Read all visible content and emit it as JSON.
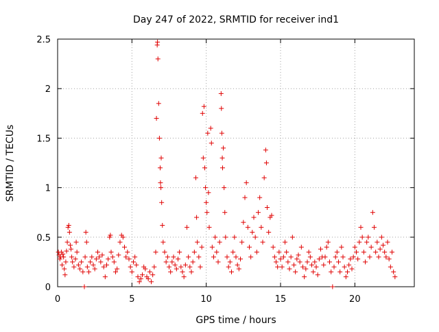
{
  "chart_data": {
    "type": "scatter",
    "title": "Day 247 of 2022, SRMTID for receiver ind1",
    "xlabel": "GPS time / hours",
    "ylabel": "SRMTID / TECUs",
    "xlim": [
      0,
      24
    ],
    "ylim": [
      0,
      2.5
    ],
    "xticks": [
      0,
      5,
      10,
      15,
      20
    ],
    "xtick_labels": [
      "0",
      "5",
      "10",
      "15",
      "20"
    ],
    "yticks": [
      0,
      0.5,
      1,
      1.5,
      2,
      2.5
    ],
    "ytick_labels": [
      "0",
      "0.5",
      "1",
      "1.5",
      "2",
      "2.5"
    ],
    "grid": true,
    "marker": "+",
    "color": "#e00000",
    "series": [
      {
        "name": "SRMTID",
        "points": [
          [
            0.05,
            0.35
          ],
          [
            0.1,
            0.32
          ],
          [
            0.15,
            0.28
          ],
          [
            0.2,
            0.3
          ],
          [
            0.25,
            0.35
          ],
          [
            0.3,
            0.22
          ],
          [
            0.35,
            0.33
          ],
          [
            0.4,
            0.3
          ],
          [
            0.45,
            0.18
          ],
          [
            0.5,
            0.12
          ],
          [
            0.55,
            0.25
          ],
          [
            0.6,
            0.36
          ],
          [
            0.65,
            0.45
          ],
          [
            0.7,
            0.6
          ],
          [
            0.75,
            0.62
          ],
          [
            0.8,
            0.55
          ],
          [
            0.85,
            0.42
          ],
          [
            0.9,
            0.38
          ],
          [
            0.95,
            0.3
          ],
          [
            1.0,
            0.25
          ],
          [
            1.1,
            0.2
          ],
          [
            1.2,
            0.28
          ],
          [
            1.25,
            0.45
          ],
          [
            1.3,
            0.35
          ],
          [
            1.4,
            0.22
          ],
          [
            1.5,
            0.18
          ],
          [
            1.6,
            0.25
          ],
          [
            1.7,
            0.15
          ],
          [
            1.8,
            0.0
          ],
          [
            1.85,
            0.3
          ],
          [
            1.9,
            0.55
          ],
          [
            1.95,
            0.45
          ],
          [
            2.0,
            0.2
          ],
          [
            2.1,
            0.15
          ],
          [
            2.2,
            0.25
          ],
          [
            2.3,
            0.3
          ],
          [
            2.4,
            0.22
          ],
          [
            2.5,
            0.18
          ],
          [
            2.6,
            0.28
          ],
          [
            2.7,
            0.35
          ],
          [
            2.8,
            0.3
          ],
          [
            2.9,
            0.25
          ],
          [
            3.0,
            0.32
          ],
          [
            3.1,
            0.2
          ],
          [
            3.2,
            0.1
          ],
          [
            3.3,
            0.22
          ],
          [
            3.4,
            0.28
          ],
          [
            3.5,
            0.5
          ],
          [
            3.55,
            0.52
          ],
          [
            3.6,
            0.35
          ],
          [
            3.7,
            0.3
          ],
          [
            3.8,
            0.25
          ],
          [
            3.9,
            0.15
          ],
          [
            4.0,
            0.18
          ],
          [
            4.1,
            0.32
          ],
          [
            4.2,
            0.45
          ],
          [
            4.3,
            0.52
          ],
          [
            4.4,
            0.5
          ],
          [
            4.5,
            0.4
          ],
          [
            4.6,
            0.3
          ],
          [
            4.7,
            0.35
          ],
          [
            4.8,
            0.28
          ],
          [
            4.9,
            0.2
          ],
          [
            5.0,
            0.15
          ],
          [
            5.1,
            0.25
          ],
          [
            5.2,
            0.3
          ],
          [
            5.3,
            0.22
          ],
          [
            5.4,
            0.1
          ],
          [
            5.5,
            0.05
          ],
          [
            5.6,
            0.08
          ],
          [
            5.7,
            0.12
          ],
          [
            5.8,
            0.2
          ],
          [
            5.9,
            0.18
          ],
          [
            6.0,
            0.1
          ],
          [
            6.1,
            0.08
          ],
          [
            6.2,
            0.15
          ],
          [
            6.3,
            0.05
          ],
          [
            6.4,
            0.12
          ],
          [
            6.5,
            0.2
          ],
          [
            6.6,
            0.35
          ],
          [
            6.65,
            1.7
          ],
          [
            6.7,
            2.44
          ],
          [
            6.72,
            2.47
          ],
          [
            6.75,
            2.3
          ],
          [
            6.8,
            1.85
          ],
          [
            6.85,
            1.5
          ],
          [
            6.9,
            1.2
          ],
          [
            6.92,
            1.05
          ],
          [
            6.95,
            1.0
          ],
          [
            6.97,
            1.3
          ],
          [
            7.0,
            0.85
          ],
          [
            7.05,
            0.62
          ],
          [
            7.1,
            0.45
          ],
          [
            7.2,
            0.35
          ],
          [
            7.3,
            0.25
          ],
          [
            7.4,
            0.3
          ],
          [
            7.5,
            0.2
          ],
          [
            7.6,
            0.15
          ],
          [
            7.7,
            0.25
          ],
          [
            7.8,
            0.3
          ],
          [
            7.9,
            0.22
          ],
          [
            8.0,
            0.18
          ],
          [
            8.1,
            0.28
          ],
          [
            8.2,
            0.35
          ],
          [
            8.3,
            0.2
          ],
          [
            8.4,
            0.15
          ],
          [
            8.5,
            0.1
          ],
          [
            8.6,
            0.22
          ],
          [
            8.7,
            0.6
          ],
          [
            8.8,
            0.3
          ],
          [
            8.9,
            0.2
          ],
          [
            9.0,
            0.15
          ],
          [
            9.1,
            0.25
          ],
          [
            9.2,
            0.35
          ],
          [
            9.3,
            1.1
          ],
          [
            9.35,
            0.7
          ],
          [
            9.4,
            0.45
          ],
          [
            9.5,
            0.3
          ],
          [
            9.6,
            0.2
          ],
          [
            9.7,
            0.4
          ],
          [
            9.75,
            1.75
          ],
          [
            9.8,
            1.3
          ],
          [
            9.85,
            1.82
          ],
          [
            9.9,
            1.2
          ],
          [
            9.95,
            1.0
          ],
          [
            10.0,
            0.85
          ],
          [
            10.05,
            0.75
          ],
          [
            10.1,
            1.55
          ],
          [
            10.15,
            0.95
          ],
          [
            10.2,
            0.6
          ],
          [
            10.3,
            1.6
          ],
          [
            10.35,
            1.45
          ],
          [
            10.4,
            0.4
          ],
          [
            10.5,
            0.3
          ],
          [
            10.6,
            0.5
          ],
          [
            10.7,
            0.35
          ],
          [
            10.8,
            0.25
          ],
          [
            10.9,
            0.45
          ],
          [
            11.0,
            1.95
          ],
          [
            11.02,
            1.8
          ],
          [
            11.05,
            1.55
          ],
          [
            11.08,
            1.3
          ],
          [
            11.1,
            1.2
          ],
          [
            11.15,
            1.4
          ],
          [
            11.2,
            1.0
          ],
          [
            11.25,
            0.75
          ],
          [
            11.3,
            0.5
          ],
          [
            11.4,
            0.3
          ],
          [
            11.5,
            0.2
          ],
          [
            11.6,
            0.25
          ],
          [
            11.7,
            0.15
          ],
          [
            11.8,
            0.35
          ],
          [
            11.9,
            0.5
          ],
          [
            12.0,
            0.3
          ],
          [
            12.1,
            0.22
          ],
          [
            12.2,
            0.18
          ],
          [
            12.3,
            0.28
          ],
          [
            12.4,
            0.45
          ],
          [
            12.5,
            0.65
          ],
          [
            12.6,
            0.9
          ],
          [
            12.7,
            1.05
          ],
          [
            12.8,
            0.6
          ],
          [
            12.9,
            0.4
          ],
          [
            13.0,
            0.3
          ],
          [
            13.1,
            0.55
          ],
          [
            13.2,
            0.7
          ],
          [
            13.3,
            0.5
          ],
          [
            13.4,
            0.35
          ],
          [
            13.5,
            0.75
          ],
          [
            13.6,
            0.9
          ],
          [
            13.7,
            0.6
          ],
          [
            13.8,
            0.45
          ],
          [
            13.9,
            1.1
          ],
          [
            14.0,
            1.38
          ],
          [
            14.05,
            1.25
          ],
          [
            14.1,
            0.8
          ],
          [
            14.2,
            0.55
          ],
          [
            14.3,
            0.7
          ],
          [
            14.4,
            0.72
          ],
          [
            14.5,
            0.4
          ],
          [
            14.6,
            0.3
          ],
          [
            14.7,
            0.25
          ],
          [
            14.8,
            0.2
          ],
          [
            14.9,
            0.35
          ],
          [
            15.0,
            0.28
          ],
          [
            15.1,
            0.2
          ],
          [
            15.2,
            0.3
          ],
          [
            15.3,
            0.45
          ],
          [
            15.4,
            0.35
          ],
          [
            15.5,
            0.25
          ],
          [
            15.6,
            0.18
          ],
          [
            15.7,
            0.3
          ],
          [
            15.8,
            0.5
          ],
          [
            15.9,
            0.22
          ],
          [
            16.0,
            0.15
          ],
          [
            16.1,
            0.28
          ],
          [
            16.2,
            0.32
          ],
          [
            16.3,
            0.25
          ],
          [
            16.4,
            0.4
          ],
          [
            16.5,
            0.2
          ],
          [
            16.6,
            0.1
          ],
          [
            16.7,
            0.18
          ],
          [
            16.8,
            0.25
          ],
          [
            16.9,
            0.35
          ],
          [
            17.0,
            0.3
          ],
          [
            17.1,
            0.22
          ],
          [
            17.2,
            0.15
          ],
          [
            17.3,
            0.25
          ],
          [
            17.4,
            0.2
          ],
          [
            17.5,
            0.12
          ],
          [
            17.6,
            0.28
          ],
          [
            17.7,
            0.38
          ],
          [
            17.8,
            0.3
          ],
          [
            17.9,
            0.22
          ],
          [
            18.0,
            0.3
          ],
          [
            18.1,
            0.4
          ],
          [
            18.2,
            0.45
          ],
          [
            18.3,
            0.25
          ],
          [
            18.4,
            0.15
          ],
          [
            18.5,
            0.0
          ],
          [
            18.6,
            0.2
          ],
          [
            18.7,
            0.3
          ],
          [
            18.8,
            0.35
          ],
          [
            18.9,
            0.25
          ],
          [
            19.0,
            0.15
          ],
          [
            19.1,
            0.4
          ],
          [
            19.2,
            0.3
          ],
          [
            19.3,
            0.2
          ],
          [
            19.4,
            0.1
          ],
          [
            19.5,
            0.15
          ],
          [
            19.6,
            0.22
          ],
          [
            19.7,
            0.28
          ],
          [
            19.8,
            0.18
          ],
          [
            19.9,
            0.3
          ],
          [
            20.0,
            0.4
          ],
          [
            20.1,
            0.35
          ],
          [
            20.2,
            0.28
          ],
          [
            20.3,
            0.45
          ],
          [
            20.4,
            0.6
          ],
          [
            20.5,
            0.5
          ],
          [
            20.6,
            0.35
          ],
          [
            20.7,
            0.25
          ],
          [
            20.8,
            0.45
          ],
          [
            20.9,
            0.5
          ],
          [
            21.0,
            0.3
          ],
          [
            21.1,
            0.4
          ],
          [
            21.2,
            0.75
          ],
          [
            21.3,
            0.6
          ],
          [
            21.4,
            0.35
          ],
          [
            21.5,
            0.45
          ],
          [
            21.6,
            0.3
          ],
          [
            21.7,
            0.38
          ],
          [
            21.8,
            0.5
          ],
          [
            21.9,
            0.42
          ],
          [
            22.0,
            0.35
          ],
          [
            22.1,
            0.3
          ],
          [
            22.2,
            0.45
          ],
          [
            22.3,
            0.28
          ],
          [
            22.4,
            0.2
          ],
          [
            22.5,
            0.35
          ],
          [
            22.6,
            0.15
          ],
          [
            22.7,
            0.1
          ]
        ]
      }
    ]
  }
}
